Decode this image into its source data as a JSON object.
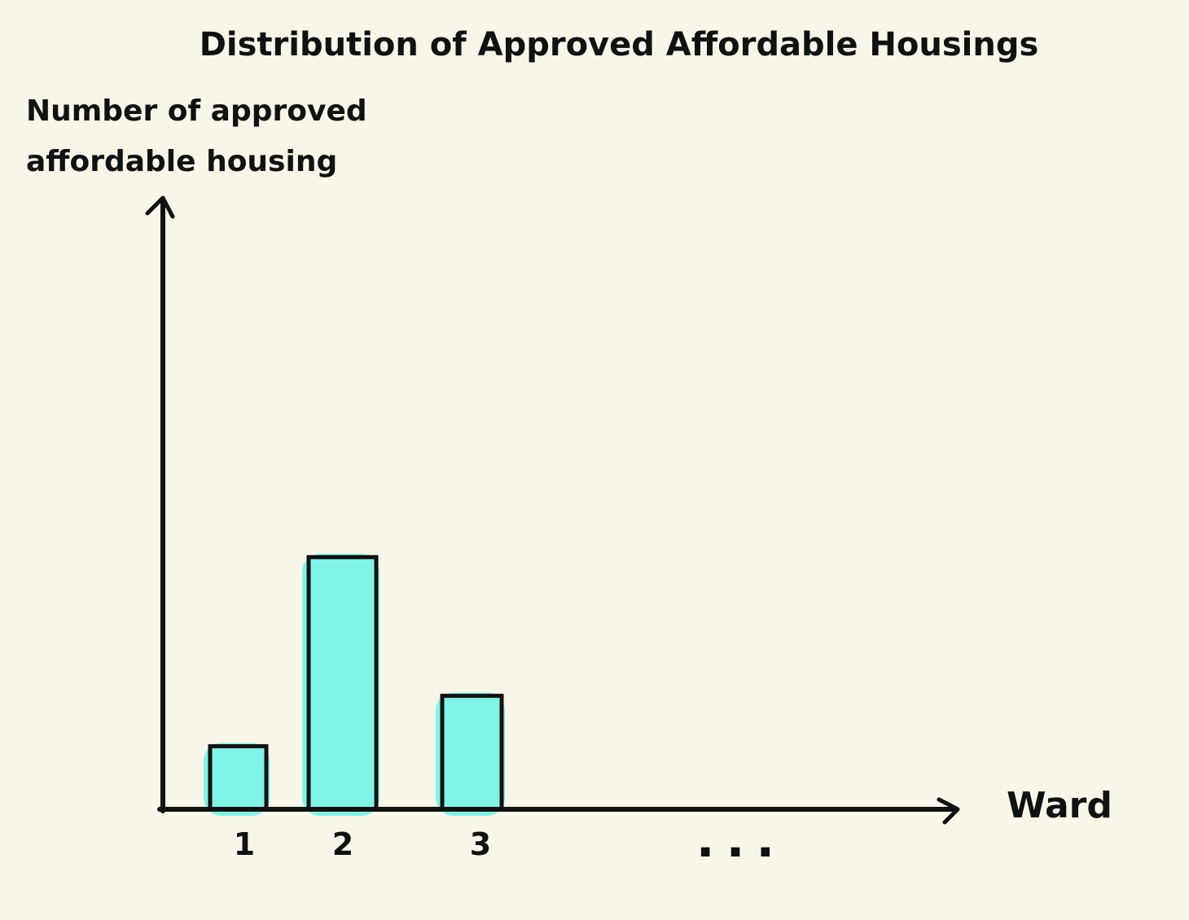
{
  "chart_data": {
    "type": "bar",
    "title": "Distribution of Approved Affordable Housings",
    "ylabel_lines": [
      "Number of approved",
      "affordable housing"
    ],
    "xlabel": "Ward",
    "categories": [
      "1",
      "2",
      "3"
    ],
    "values": [
      1,
      4,
      1.8
    ],
    "trailing_tick": "...",
    "ylim": [
      0,
      9.7
    ],
    "grid": false,
    "colors": {
      "bar_fill": "#7ff5e7",
      "bar_outline": "#111111",
      "axis": "#111111",
      "background": "#f8f5e9"
    }
  }
}
